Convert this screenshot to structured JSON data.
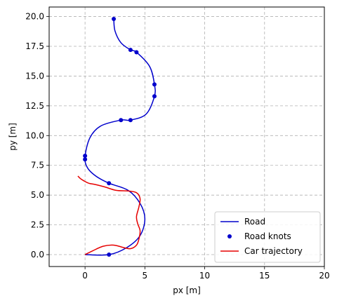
{
  "chart_data": {
    "type": "line",
    "title": "",
    "xlabel": "px [m]",
    "ylabel": "py [m]",
    "xlim": [
      -3,
      20
    ],
    "ylim": [
      -1,
      20.8
    ],
    "xticks": [
      0,
      5,
      10,
      15,
      20
    ],
    "yticks": [
      0.0,
      2.5,
      5.0,
      7.5,
      10.0,
      12.5,
      15.0,
      17.5,
      20.0
    ],
    "xtick_labels": [
      "0",
      "5",
      "10",
      "15",
      "20"
    ],
    "ytick_labels": [
      "0.0",
      "2.5",
      "5.0",
      "7.5",
      "10.0",
      "12.5",
      "15.0",
      "17.5",
      "20.0"
    ],
    "grid": true,
    "legend_position": "lower-right",
    "series": [
      {
        "name": "Road",
        "kind": "line",
        "color": "#0000cc",
        "x": [
          0,
          2,
          3.5,
          4.6,
          5,
          4.6,
          3.6,
          2,
          0.9,
          0.2,
          0,
          0.4,
          1.3,
          3,
          3.8,
          5.1,
          5.8,
          5.8,
          5.4,
          4.3,
          3.8,
          3.0,
          2.5,
          2.4
        ],
        "y": [
          0,
          0,
          0.6,
          1.6,
          3,
          4.3,
          5.4,
          6,
          6.6,
          7.3,
          8.2,
          9.8,
          10.8,
          11.3,
          11.3,
          11.8,
          13.3,
          14.3,
          15.8,
          17.0,
          17.2,
          17.8,
          18.8,
          19.8
        ]
      },
      {
        "name": "Road knots",
        "kind": "scatter",
        "color": "#0000cc",
        "x": [
          2.0,
          2.0,
          0.0,
          0.0,
          3.0,
          3.8,
          5.8,
          5.8,
          4.3,
          3.8,
          2.4
        ],
        "y": [
          0.0,
          6.0,
          8.0,
          8.3,
          11.3,
          11.3,
          13.3,
          14.3,
          17.0,
          17.2,
          19.8
        ]
      },
      {
        "name": "Car trajectory",
        "kind": "line",
        "color": "#e60000",
        "x": [
          0,
          0.6,
          1.5,
          2.4,
          3.2,
          3.8,
          4.3,
          4.5,
          4.6,
          4.4,
          4.3,
          4.5,
          4.6,
          4.3,
          3.6,
          2.6,
          1.6,
          0.8,
          0.3,
          -0.1,
          -0.4,
          -0.6
        ],
        "y": [
          0,
          0.3,
          0.7,
          0.8,
          0.6,
          0.5,
          0.8,
          1.3,
          2.0,
          2.6,
          3.2,
          4.0,
          4.7,
          5.2,
          5.35,
          5.4,
          5.7,
          5.9,
          6.0,
          6.2,
          6.4,
          6.6
        ]
      }
    ]
  }
}
